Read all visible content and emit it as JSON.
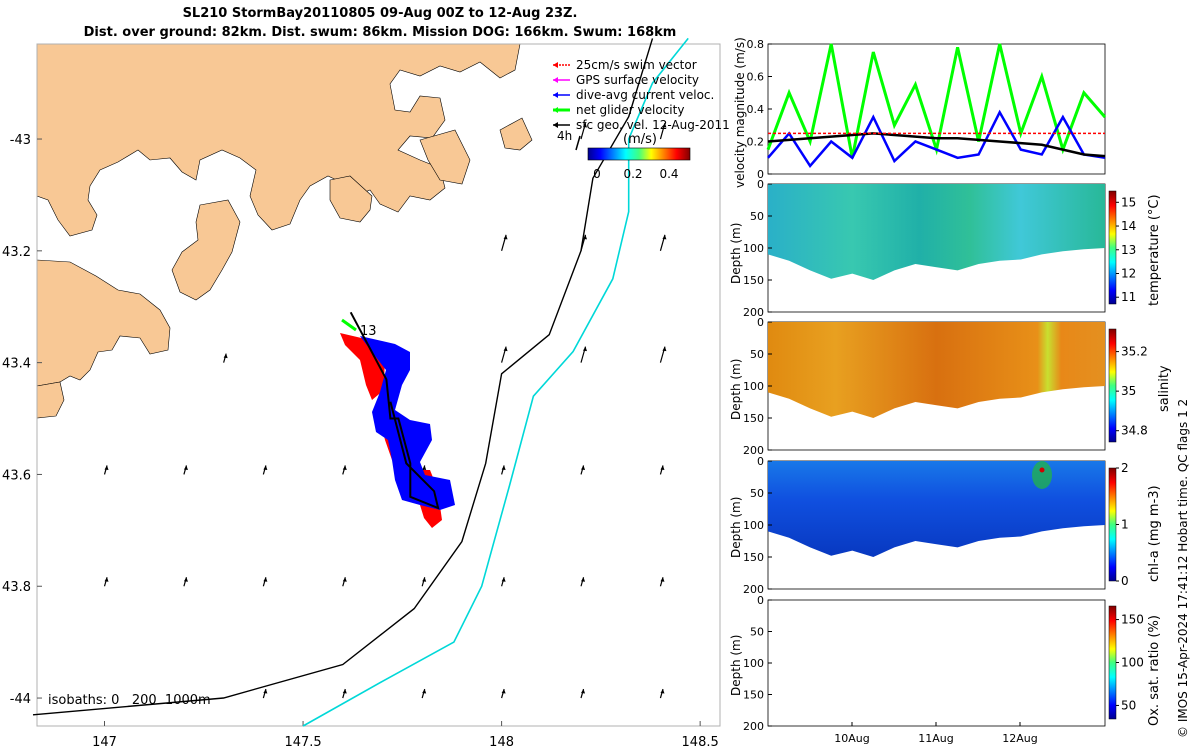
{
  "header": {
    "title_line1": "SL210 StormBay20110805 09-Aug 00Z to 12-Aug 23Z.",
    "title_line2": "Dist. over ground: 82km. Dist. swum: 86km. Mission DOG: 166km. Swum: 168km"
  },
  "credit": "© IMOS 15-Apr-2024 17:41:12 Hobart time. QC flags 1  2",
  "colors": {
    "land": "#f8c895",
    "swim_vector": "#ff0000",
    "gps_velocity": "#ff00ff",
    "dive_current": "#0000ff",
    "net_glider": "#00ff00",
    "geo_velocity": "#000000",
    "isobath_200": "#000000",
    "isobath_1000": "#00d8d8",
    "track": "#000000"
  },
  "chart_data": [
    {
      "type": "map",
      "xlim": [
        146.83,
        148.55
      ],
      "ylim": [
        -44.05,
        -42.83
      ],
      "x_ticks": [
        147,
        147.5,
        148,
        148.5
      ],
      "x_tick_labels": [
        "147",
        "147.5",
        "148",
        "148.5"
      ],
      "y_ticks": [
        -43,
        -43.2,
        -43.4,
        -43.6,
        -43.8,
        -44
      ],
      "y_tick_labels": [
        "-43",
        "43.2",
        "43.4",
        "43.6",
        "43.8",
        "-44"
      ],
      "legend": {
        "items": [
          {
            "label": "25cm/s swim vector",
            "color": "#ff0000"
          },
          {
            "label": "GPS surface velocity",
            "color": "#ff00ff"
          },
          {
            "label": "dive-avg current veloc.",
            "color": "#0000ff"
          },
          {
            "label": "net glider velocity",
            "color": "#00ff00"
          },
          {
            "label": "sfc geo. vel. 12-Aug-2011",
            "color": "#000000"
          }
        ],
        "scale_label": "4h"
      },
      "colorbar": {
        "title": "(m/s)",
        "ticks": [
          "0",
          "0.2",
          "0.4"
        ],
        "range": [
          0,
          0.5
        ]
      },
      "annotation": "13",
      "isobath_label": "isobaths: 0   200  1000m",
      "track": [
        [
          147.62,
          -43.31
        ],
        [
          147.71,
          -43.43
        ],
        [
          147.72,
          -43.5
        ],
        [
          147.74,
          -43.5
        ],
        [
          147.77,
          -43.58
        ],
        [
          147.77,
          -43.64
        ],
        [
          147.84,
          -43.66
        ],
        [
          147.83,
          -43.63
        ],
        [
          147.76,
          -43.58
        ],
        [
          147.72,
          -43.47
        ]
      ],
      "swim_vectors": [
        [
          147.63,
          -43.33
        ],
        [
          147.67,
          -43.42
        ],
        [
          147.69,
          -43.5
        ],
        [
          147.73,
          -43.52
        ],
        [
          147.76,
          -43.6
        ],
        [
          147.82,
          -43.66
        ]
      ],
      "current_vectors": [
        [
          147.7,
          -43.33
        ],
        [
          147.74,
          -43.37
        ],
        [
          147.76,
          -43.4
        ],
        [
          147.74,
          -43.47
        ],
        [
          147.76,
          -43.55
        ],
        [
          147.8,
          -43.62
        ]
      ],
      "isobath_200": [
        [
          146.82,
          -44.03
        ],
        [
          147.3,
          -44.0
        ],
        [
          147.6,
          -43.94
        ],
        [
          147.78,
          -43.84
        ],
        [
          147.9,
          -43.72
        ],
        [
          147.96,
          -43.58
        ],
        [
          148.0,
          -43.42
        ],
        [
          148.12,
          -43.35
        ],
        [
          148.2,
          -43.2
        ],
        [
          148.23,
          -43.07
        ],
        [
          148.32,
          -42.96
        ],
        [
          148.38,
          -42.82
        ]
      ],
      "isobath_1000": [
        [
          147.5,
          -44.05
        ],
        [
          147.7,
          -43.97
        ],
        [
          147.88,
          -43.9
        ],
        [
          147.95,
          -43.8
        ],
        [
          148.02,
          -43.62
        ],
        [
          148.08,
          -43.46
        ],
        [
          148.18,
          -43.38
        ],
        [
          148.28,
          -43.25
        ],
        [
          148.32,
          -43.13
        ],
        [
          148.32,
          -43.0
        ],
        [
          148.38,
          -42.9
        ],
        [
          148.47,
          -42.82
        ]
      ],
      "geo_arrows_bottom": [
        [
          147.0,
          -43.6
        ],
        [
          147.2,
          -43.6
        ],
        [
          147.4,
          -43.6
        ],
        [
          147.6,
          -43.6
        ],
        [
          147.8,
          -43.6
        ],
        [
          148.0,
          -43.6
        ],
        [
          148.2,
          -43.6
        ],
        [
          148.4,
          -43.6
        ],
        [
          147.0,
          -43.8
        ],
        [
          147.2,
          -43.8
        ],
        [
          147.4,
          -43.8
        ],
        [
          147.6,
          -43.8
        ],
        [
          147.8,
          -43.8
        ],
        [
          148.0,
          -43.8
        ],
        [
          148.2,
          -43.8
        ],
        [
          148.4,
          -43.8
        ],
        [
          147.4,
          -44.0
        ],
        [
          147.6,
          -44.0
        ],
        [
          147.8,
          -44.0
        ],
        [
          148.0,
          -44.0
        ],
        [
          148.2,
          -44.0
        ],
        [
          148.4,
          -44.0
        ]
      ]
    },
    {
      "type": "line",
      "ylabel": "velocity magnitude (m/s)",
      "ylim": [
        0,
        0.8
      ],
      "y_ticks": [
        0,
        0.2,
        0.4,
        0.6,
        0.8
      ],
      "y_tick_labels": [
        "0",
        "0.2",
        "0.4",
        "0.6",
        "0.8"
      ],
      "x_tick_labels": [
        "10Aug",
        "11Aug",
        "12Aug"
      ],
      "x": [
        0,
        0.25,
        0.5,
        0.75,
        1,
        1.25,
        1.5,
        1.75,
        2,
        2.25,
        2.5,
        2.75,
        3,
        3.25,
        3.5,
        3.75,
        4
      ],
      "series": [
        {
          "name": "net glider velocity",
          "values": [
            0.15,
            0.5,
            0.2,
            0.8,
            0.1,
            0.75,
            0.3,
            0.55,
            0.15,
            0.78,
            0.2,
            0.8,
            0.25,
            0.6,
            0.15,
            0.5,
            0.35
          ]
        },
        {
          "name": "dive-avg current veloc.",
          "values": [
            0.1,
            0.25,
            0.05,
            0.2,
            0.1,
            0.35,
            0.08,
            0.2,
            0.15,
            0.1,
            0.12,
            0.38,
            0.15,
            0.12,
            0.35,
            0.12,
            0.1
          ]
        },
        {
          "name": "sfc geo. vel.",
          "values": [
            0.2,
            0.21,
            0.22,
            0.23,
            0.24,
            0.25,
            0.24,
            0.23,
            0.22,
            0.22,
            0.21,
            0.2,
            0.19,
            0.18,
            0.15,
            0.12,
            0.11
          ]
        },
        {
          "name": "25cm/s swim vector",
          "values": [
            0.25,
            0.25,
            0.25,
            0.25,
            0.25,
            0.25,
            0.25,
            0.25,
            0.25,
            0.25,
            0.25,
            0.25,
            0.25,
            0.25,
            0.25,
            0.25,
            0.25
          ]
        }
      ]
    },
    {
      "type": "heatmap",
      "variable": "temperature",
      "ylabel": "Depth (m)",
      "ylim": [
        200,
        0
      ],
      "y_tick_labels": [
        "0",
        "50",
        "100",
        "150",
        "200"
      ],
      "colorbar_label": "temperature (°C)",
      "colorbar_ticks": [
        "11",
        "12",
        "13",
        "14",
        "15"
      ],
      "bottom_depth": [
        110,
        120,
        135,
        148,
        140,
        150,
        135,
        125,
        130,
        135,
        125,
        120,
        118,
        110,
        105,
        102,
        100
      ]
    },
    {
      "type": "heatmap",
      "variable": "salinity",
      "ylabel": "Depth (m)",
      "ylim": [
        200,
        0
      ],
      "y_tick_labels": [
        "0",
        "50",
        "100",
        "150",
        "200"
      ],
      "colorbar_label": "salinity",
      "colorbar_ticks": [
        "34.8",
        "35",
        "35.2"
      ],
      "bottom_depth": [
        110,
        120,
        135,
        148,
        140,
        150,
        135,
        125,
        130,
        135,
        125,
        120,
        118,
        110,
        105,
        102,
        100
      ]
    },
    {
      "type": "heatmap",
      "variable": "chl-a",
      "ylabel": "Depth (m)",
      "ylim": [
        200,
        0
      ],
      "y_tick_labels": [
        "0",
        "50",
        "100",
        "150",
        "200"
      ],
      "colorbar_label": "chl-a (mg m-3)",
      "colorbar_ticks": [
        "0",
        "1",
        "2"
      ],
      "bottom_depth": [
        110,
        120,
        135,
        148,
        140,
        150,
        135,
        125,
        130,
        135,
        125,
        120,
        118,
        110,
        105,
        102,
        100
      ]
    },
    {
      "type": "heatmap",
      "variable": "oxygen saturation",
      "ylabel": "Depth (m)",
      "ylim": [
        200,
        0
      ],
      "y_tick_labels": [
        "0",
        "50",
        "100",
        "150",
        "200"
      ],
      "x_tick_labels": [
        "10Aug",
        "11Aug",
        "12Aug"
      ],
      "colorbar_label": "Ox. sat. ratio (%)",
      "colorbar_ticks": [
        "50",
        "100",
        "150"
      ],
      "bottom_depth": []
    }
  ]
}
